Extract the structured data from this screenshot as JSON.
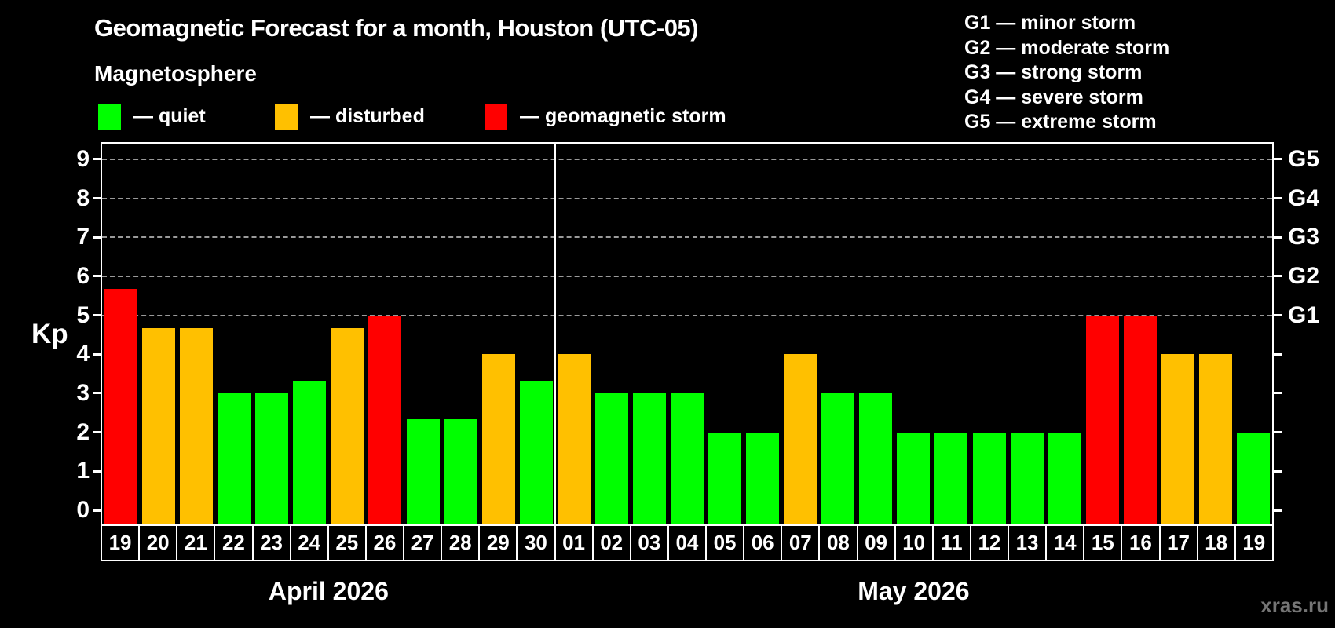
{
  "page": {
    "background": "#000000",
    "text_color": "#ffffff",
    "watermark": "xras.ru"
  },
  "header": {
    "title": "Geomagnetic Forecast for a month, Houston (UTC-05)",
    "subtitle": "Magnetosphere"
  },
  "magnetosphere_legend": {
    "items": [
      {
        "key": "quiet",
        "label": "— quiet",
        "color": "#00ff00"
      },
      {
        "key": "disturbed",
        "label": "— disturbed",
        "color": "#ffc000"
      },
      {
        "key": "storm",
        "label": "— geomagnetic storm",
        "color": "#ff0000"
      }
    ]
  },
  "g_scale_legend": {
    "lines": [
      "G1 — minor storm",
      "G2 — moderate storm",
      "G3 — strong storm",
      "G4 — severe storm",
      "G5 — extreme storm"
    ]
  },
  "chart_data": {
    "type": "bar",
    "title": "Geomagnetic Forecast for a month, Houston (UTC-05)",
    "xlabel": "",
    "ylabel": "Kp",
    "ylim": [
      0,
      9
    ],
    "grid": "dashed horizontal gray lines at Kp 5-9 (G1-G5 levels)",
    "legend_position": "top-left (status colors) and top-right (G scale)",
    "left_ticks": [
      0,
      1,
      2,
      3,
      4,
      5,
      6,
      7,
      8,
      9
    ],
    "right_ticks": [
      {
        "kp": 5,
        "label": "G1"
      },
      {
        "kp": 6,
        "label": "G2"
      },
      {
        "kp": 7,
        "label": "G3"
      },
      {
        "kp": 8,
        "label": "G4"
      },
      {
        "kp": 9,
        "label": "G5"
      }
    ],
    "right_minor_ticks": [
      0,
      1,
      2,
      3,
      4
    ],
    "gridlines_at_kp": [
      5,
      6,
      7,
      8,
      9
    ],
    "status_colors": {
      "quiet": "#00ff00",
      "disturbed": "#ffc000",
      "storm": "#ff0000"
    },
    "months": [
      {
        "label": "April 2026",
        "days": [
          {
            "date": "19",
            "kp": 5.67,
            "status": "storm"
          },
          {
            "date": "20",
            "kp": 4.67,
            "status": "disturbed"
          },
          {
            "date": "21",
            "kp": 4.67,
            "status": "disturbed"
          },
          {
            "date": "22",
            "kp": 3.0,
            "status": "quiet"
          },
          {
            "date": "23",
            "kp": 3.0,
            "status": "quiet"
          },
          {
            "date": "24",
            "kp": 3.33,
            "status": "quiet"
          },
          {
            "date": "25",
            "kp": 4.67,
            "status": "disturbed"
          },
          {
            "date": "26",
            "kp": 5.0,
            "status": "storm"
          },
          {
            "date": "27",
            "kp": 2.33,
            "status": "quiet"
          },
          {
            "date": "28",
            "kp": 2.33,
            "status": "quiet"
          },
          {
            "date": "29",
            "kp": 4.0,
            "status": "disturbed"
          },
          {
            "date": "30",
            "kp": 3.33,
            "status": "quiet"
          }
        ]
      },
      {
        "label": "May 2026",
        "days": [
          {
            "date": "01",
            "kp": 4.0,
            "status": "disturbed"
          },
          {
            "date": "02",
            "kp": 3.0,
            "status": "quiet"
          },
          {
            "date": "03",
            "kp": 3.0,
            "status": "quiet"
          },
          {
            "date": "04",
            "kp": 3.0,
            "status": "quiet"
          },
          {
            "date": "05",
            "kp": 2.0,
            "status": "quiet"
          },
          {
            "date": "06",
            "kp": 2.0,
            "status": "quiet"
          },
          {
            "date": "07",
            "kp": 4.0,
            "status": "disturbed"
          },
          {
            "date": "08",
            "kp": 3.0,
            "status": "quiet"
          },
          {
            "date": "09",
            "kp": 3.0,
            "status": "quiet"
          },
          {
            "date": "10",
            "kp": 2.0,
            "status": "quiet"
          },
          {
            "date": "11",
            "kp": 2.0,
            "status": "quiet"
          },
          {
            "date": "12",
            "kp": 2.0,
            "status": "quiet"
          },
          {
            "date": "13",
            "kp": 2.0,
            "status": "quiet"
          },
          {
            "date": "14",
            "kp": 2.0,
            "status": "quiet"
          },
          {
            "date": "15",
            "kp": 5.0,
            "status": "storm"
          },
          {
            "date": "16",
            "kp": 5.0,
            "status": "storm"
          },
          {
            "date": "17",
            "kp": 4.0,
            "status": "disturbed"
          },
          {
            "date": "18",
            "kp": 4.0,
            "status": "disturbed"
          },
          {
            "date": "19",
            "kp": 2.0,
            "status": "quiet"
          }
        ]
      }
    ]
  }
}
